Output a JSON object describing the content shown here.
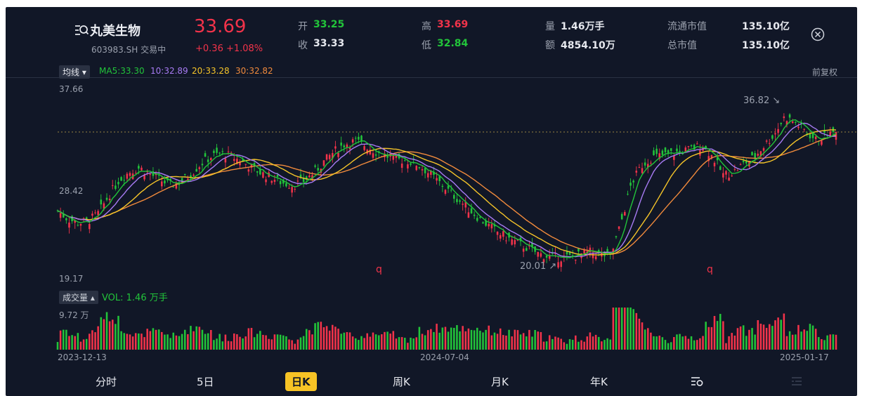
{
  "stock": {
    "name": "丸美生物",
    "code_status": "603983.SH 交易中",
    "price": "33.69",
    "change": "+0.36 +1.08%",
    "open_label": "开",
    "open": "33.25",
    "close_label": "收",
    "close": "33.33",
    "high_label": "高",
    "high": "33.69",
    "low_label": "低",
    "low": "32.84",
    "volume_label": "量",
    "volume": "1.46万手",
    "amount_label": "额",
    "amount": "4854.10万",
    "float_cap_label": "流通市值",
    "float_cap": "135.10亿",
    "total_cap_label": "总市值",
    "total_cap": "135.10亿"
  },
  "indicators": {
    "selector": "均线",
    "ma5": "MA5:33.30",
    "ma10": "10:32.89",
    "ma20": "20:33.28",
    "ma30": "30:32.82",
    "adjust": "前复权"
  },
  "axis": {
    "price_max": "37.66",
    "price_mid": "28.42",
    "price_min": "19.17",
    "vol_max": "9.72 万",
    "date_start": "2023-12-13",
    "date_mid": "2024-07-04",
    "date_end": "2025-01-17"
  },
  "annotations": {
    "high_mark": "36.82",
    "low_mark": "20.01",
    "q_mark_1": "q",
    "q_mark_2": "q"
  },
  "volume": {
    "selector": "成交量",
    "label": "VOL: 1.46 万手"
  },
  "tabs": [
    {
      "label": "分时"
    },
    {
      "label": "5日"
    },
    {
      "label": "日K"
    },
    {
      "label": "周K"
    },
    {
      "label": "月K"
    },
    {
      "label": "年K"
    }
  ],
  "colors": {
    "up": "#f2334a",
    "down": "#22c43a",
    "ma5": "#22c43a",
    "ma10": "#a77bf3",
    "ma20": "#f5c429",
    "ma30": "#f08a3c",
    "background": "#111727",
    "active_tab": "#f7c325"
  },
  "icons": {
    "search": "search-list-icon",
    "close": "close-circle-icon",
    "settings": "chart-settings-icon",
    "list": "list-icon"
  },
  "chart_data": {
    "type": "candlestick",
    "price_range": [
      19.17,
      37.66
    ],
    "current_price": 33.69,
    "high_marker": 36.82,
    "low_marker": 20.01,
    "moving_averages": {
      "MA5": 33.3,
      "MA10": 32.89,
      "MA20": 33.28,
      "MA30": 32.82
    },
    "x_labels": [
      "2023-12-13",
      "2024-07-04",
      "2025-01-17"
    ],
    "close_trend": [
      26,
      25.2,
      24.8,
      25,
      25.8,
      27.5,
      29,
      29.8,
      30.2,
      29.6,
      29,
      28.5,
      28.8,
      29.6,
      30.6,
      31.3,
      31.6,
      31.3,
      30.8,
      30.2,
      29.6,
      29.2,
      28.7,
      28.5,
      28.9,
      29.7,
      30.8,
      31.8,
      32.5,
      32.8,
      32.4,
      31.8,
      31.4,
      31,
      30.9,
      30.6,
      29.9,
      29,
      28.1,
      27.2,
      26.3,
      25.4,
      24.6,
      23.9,
      23.3,
      22.8,
      22.3,
      21.8,
      21.5,
      21.4,
      21.5,
      21.7,
      22,
      21.8,
      21.5,
      24.8,
      28.6,
      30.4,
      31.2,
      31.4,
      31.6,
      31.8,
      32.1,
      32.4,
      31.2,
      29.5,
      29.8,
      30.6,
      31.2,
      32.4,
      33.5,
      35.2,
      34.6,
      33.8,
      32.9,
      33.3,
      33.69
    ],
    "volume_max_wan": 9.72,
    "current_volume_wan": 1.46
  }
}
